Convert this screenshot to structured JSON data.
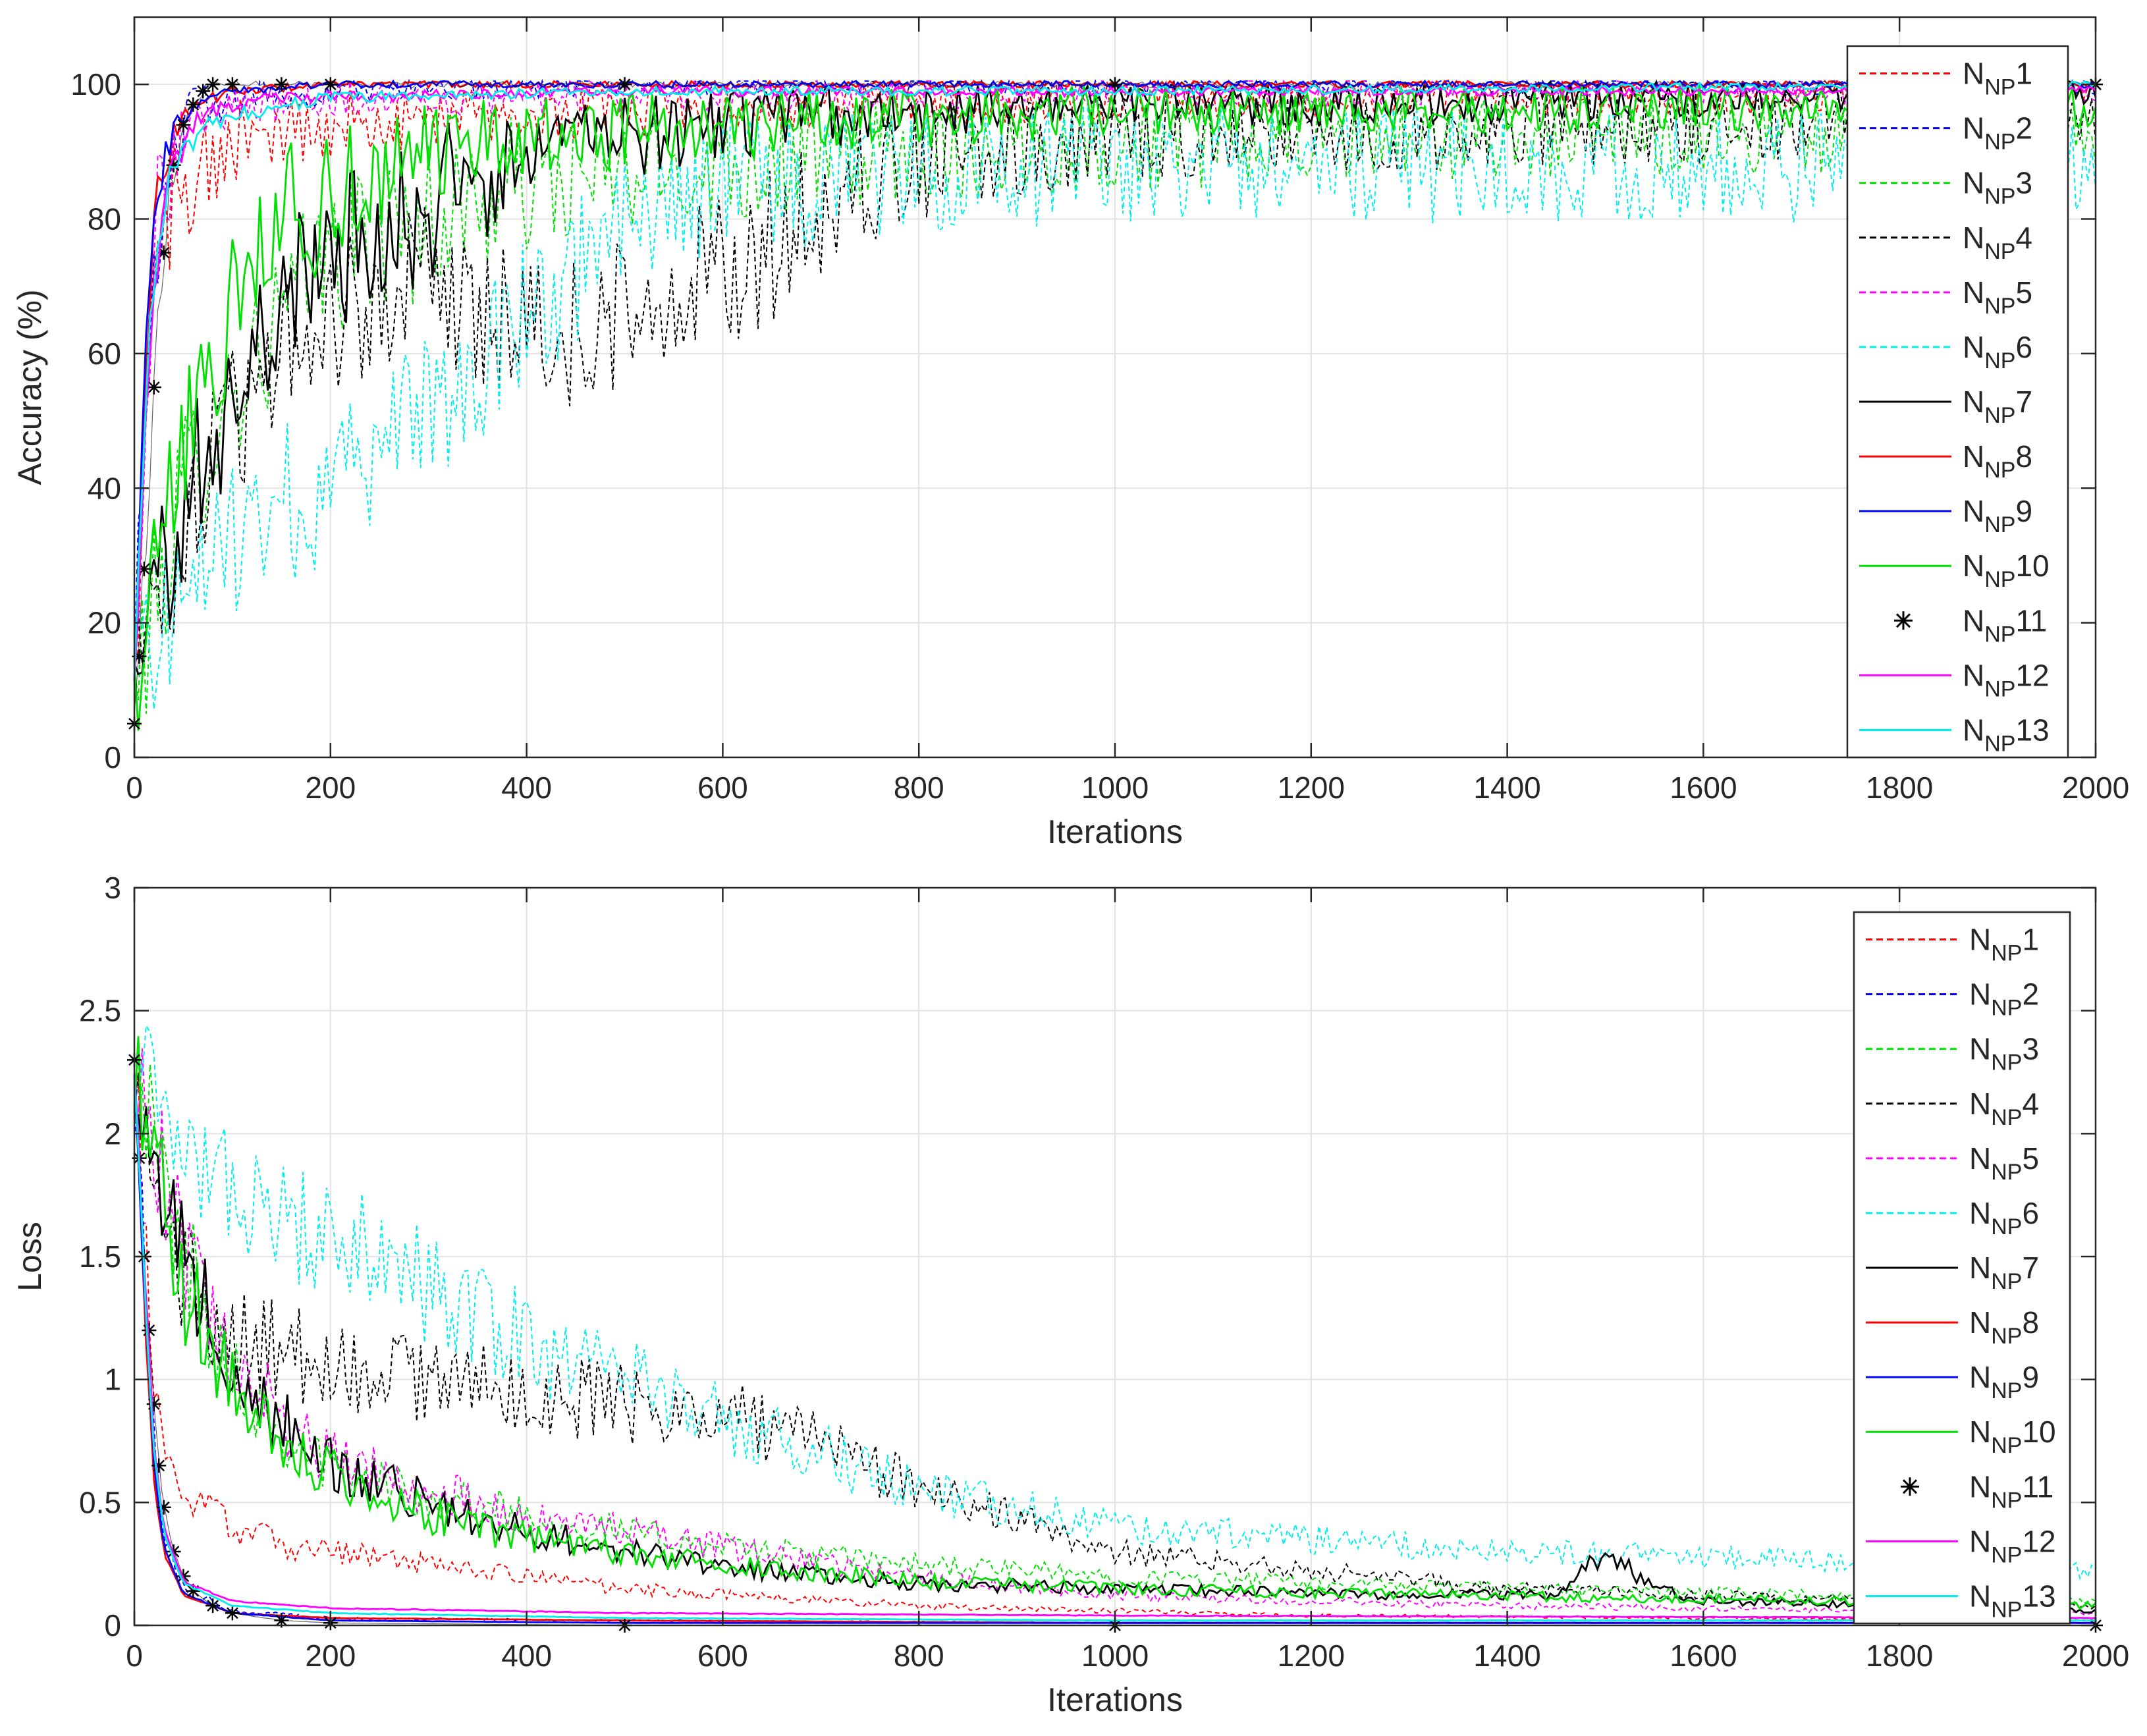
{
  "colors": {
    "red": "#ff0000",
    "blue": "#0000ff",
    "green": "#00e000",
    "black": "#000000",
    "magenta": "#ff00ff",
    "cyan": "#00eeee",
    "grid": "#e3e3e3",
    "axis": "#262626"
  },
  "legend": {
    "prefix": "N",
    "subscript": "NP",
    "placement": "top-right",
    "entries": [
      {
        "id": "1",
        "suffix": "1",
        "color": "red",
        "style": "dashed"
      },
      {
        "id": "2",
        "suffix": "2",
        "color": "blue",
        "style": "dashed"
      },
      {
        "id": "3",
        "suffix": "3",
        "color": "green",
        "style": "dashed"
      },
      {
        "id": "4",
        "suffix": "4",
        "color": "black",
        "style": "dashed"
      },
      {
        "id": "5",
        "suffix": "5",
        "color": "magenta",
        "style": "dashed"
      },
      {
        "id": "6",
        "suffix": "6",
        "color": "cyan",
        "style": "dashed"
      },
      {
        "id": "7",
        "suffix": "7",
        "color": "black",
        "style": "solid"
      },
      {
        "id": "8",
        "suffix": "8",
        "color": "red",
        "style": "solid"
      },
      {
        "id": "9",
        "suffix": "9",
        "color": "blue",
        "style": "solid"
      },
      {
        "id": "10",
        "suffix": "10",
        "color": "green",
        "style": "solid"
      },
      {
        "id": "11",
        "suffix": "11",
        "color": "black",
        "style": "marker"
      },
      {
        "id": "12",
        "suffix": "12",
        "color": "magenta",
        "style": "solid"
      },
      {
        "id": "13",
        "suffix": "13",
        "color": "cyan",
        "style": "solid"
      }
    ]
  },
  "chart_data": [
    {
      "type": "line",
      "panel": "accuracy",
      "title": "",
      "xlabel": "Iterations",
      "ylabel": "Accuracy (%)",
      "xlim": [
        0,
        2000
      ],
      "ylim": [
        0,
        110
      ],
      "xticks": [
        0,
        200,
        400,
        600,
        800,
        1000,
        1200,
        1400,
        1600,
        1800,
        2000
      ],
      "yticks": [
        0,
        20,
        40,
        60,
        80,
        100
      ],
      "xtick_labels": [
        "0",
        "200",
        "400",
        "600",
        "800",
        "1000",
        "1200",
        "1400",
        "1600",
        "1800",
        "2000"
      ],
      "ytick_labels": [
        "0",
        "20",
        "40",
        "60",
        "80",
        "100"
      ],
      "grid": true,
      "legend_position": "top-right",
      "series": [
        {
          "id": "1",
          "x": [
            0,
            10,
            20,
            40,
            60,
            100,
            150,
            200,
            300,
            500,
            800,
            1200,
            1600,
            2000
          ],
          "y": [
            10,
            40,
            70,
            82,
            88,
            91,
            93,
            94,
            95,
            96,
            97,
            98,
            98,
            99
          ]
        },
        {
          "id": "2",
          "x": [
            0,
            10,
            20,
            40,
            60,
            100,
            200,
            500,
            1000,
            2000
          ],
          "y": [
            10,
            55,
            80,
            92,
            96,
            98,
            99,
            100,
            100,
            100
          ]
        },
        {
          "id": "3",
          "x": [
            0,
            50,
            100,
            200,
            400,
            600,
            800,
            1000,
            1400,
            2000
          ],
          "y": [
            10,
            40,
            55,
            75,
            85,
            88,
            90,
            91,
            92,
            93
          ]
        },
        {
          "id": "4",
          "x": [
            0,
            50,
            100,
            200,
            300,
            400,
            500,
            600,
            700,
            800,
            1000,
            1400,
            2000
          ],
          "y": [
            10,
            35,
            50,
            65,
            72,
            62,
            65,
            72,
            80,
            88,
            92,
            93,
            95
          ]
        },
        {
          "id": "5",
          "x": [
            0,
            10,
            20,
            40,
            60,
            100,
            200,
            500,
            1000,
            2000
          ],
          "y": [
            10,
            50,
            75,
            90,
            95,
            97,
            98,
            98,
            99,
            99
          ]
        },
        {
          "id": "6",
          "x": [
            0,
            50,
            100,
            150,
            200,
            250,
            300,
            400,
            500,
            600,
            800,
            1000,
            1400,
            1800,
            2000
          ],
          "y": [
            10,
            25,
            32,
            38,
            40,
            45,
            52,
            65,
            78,
            85,
            87,
            88,
            88,
            88,
            89
          ]
        },
        {
          "id": "7",
          "x": [
            0,
            50,
            100,
            150,
            200,
            300,
            400,
            500,
            600,
            800,
            1000,
            1400,
            1600,
            2000
          ],
          "y": [
            10,
            38,
            55,
            68,
            75,
            82,
            88,
            92,
            94,
            96,
            97,
            97,
            98,
            99
          ]
        },
        {
          "id": "8",
          "x": [
            0,
            10,
            20,
            40,
            60,
            100,
            200,
            500,
            1000,
            2000
          ],
          "y": [
            10,
            55,
            80,
            93,
            97,
            99,
            100,
            100,
            100,
            100
          ]
        },
        {
          "id": "9",
          "x": [
            0,
            10,
            20,
            40,
            60,
            100,
            200,
            500,
            1000,
            2000
          ],
          "y": [
            10,
            55,
            82,
            94,
            97,
            99,
            100,
            100,
            100,
            100
          ]
        },
        {
          "id": "10",
          "x": [
            0,
            50,
            100,
            150,
            200,
            300,
            500,
            800,
            1000,
            2000
          ],
          "y": [
            10,
            45,
            65,
            78,
            85,
            90,
            93,
            95,
            96,
            97
          ]
        },
        {
          "id": "11",
          "x": [
            0,
            5,
            10,
            20,
            30,
            40,
            50,
            60,
            70,
            80,
            100,
            150,
            200,
            500,
            1000,
            2000
          ],
          "y": [
            5,
            15,
            28,
            55,
            75,
            88,
            94,
            97,
            99,
            100,
            100,
            100,
            100,
            100,
            100,
            100
          ]
        },
        {
          "id": "12",
          "x": [
            0,
            10,
            20,
            40,
            60,
            100,
            150,
            200,
            500,
            1000,
            2000
          ],
          "y": [
            10,
            45,
            70,
            88,
            94,
            97,
            98,
            98,
            99,
            99,
            99
          ]
        },
        {
          "id": "13",
          "x": [
            0,
            10,
            20,
            40,
            60,
            100,
            150,
            200,
            500,
            1000,
            2000
          ],
          "y": [
            10,
            50,
            72,
            88,
            92,
            95,
            97,
            98,
            99,
            99,
            100
          ]
        }
      ]
    },
    {
      "type": "line",
      "panel": "loss",
      "title": "",
      "xlabel": "Iterations",
      "ylabel": "Loss",
      "xlim": [
        0,
        2000
      ],
      "ylim": [
        0,
        3
      ],
      "xticks": [
        0,
        200,
        400,
        600,
        800,
        1000,
        1200,
        1400,
        1600,
        1800,
        2000
      ],
      "yticks": [
        0,
        0.5,
        1,
        1.5,
        2,
        2.5,
        3
      ],
      "xtick_labels": [
        "0",
        "200",
        "400",
        "600",
        "800",
        "1000",
        "1200",
        "1400",
        "1600",
        "1800",
        "2000"
      ],
      "ytick_labels": [
        "0",
        "0.5",
        "1",
        "1.5",
        "2",
        "2.5",
        "3"
      ],
      "grid": true,
      "legend_position": "top-right",
      "series": [
        {
          "id": "1",
          "x": [
            0,
            10,
            20,
            30,
            50,
            100,
            150,
            200,
            300,
            400,
            500,
            800,
            1200,
            2000
          ],
          "y": [
            2.3,
            1.6,
            1.0,
            0.7,
            0.55,
            0.4,
            0.33,
            0.3,
            0.25,
            0.2,
            0.15,
            0.08,
            0.04,
            0.02
          ]
        },
        {
          "id": "2",
          "x": [
            0,
            10,
            20,
            30,
            50,
            100,
            200,
            500,
            1000,
            2000
          ],
          "y": [
            2.3,
            1.4,
            0.7,
            0.4,
            0.15,
            0.06,
            0.03,
            0.02,
            0.01,
            0.01
          ]
        },
        {
          "id": "3",
          "x": [
            0,
            25,
            50,
            100,
            150,
            200,
            300,
            400,
            500,
            600,
            800,
            1000,
            1400,
            2000
          ],
          "y": [
            2.3,
            1.9,
            1.5,
            1.05,
            0.8,
            0.65,
            0.52,
            0.45,
            0.38,
            0.32,
            0.25,
            0.2,
            0.15,
            0.1
          ]
        },
        {
          "id": "4",
          "x": [
            0,
            25,
            50,
            100,
            200,
            300,
            400,
            500,
            600,
            700,
            800,
            1000,
            1400,
            2000
          ],
          "y": [
            2.3,
            1.7,
            1.4,
            1.2,
            1.05,
            1.0,
            0.95,
            0.9,
            0.85,
            0.75,
            0.55,
            0.3,
            0.15,
            0.08
          ]
        },
        {
          "id": "5",
          "x": [
            0,
            25,
            50,
            100,
            150,
            200,
            300,
            400,
            500,
            600,
            700,
            800,
            1000,
            1400,
            2000
          ],
          "y": [
            2.3,
            1.9,
            1.5,
            1.1,
            0.85,
            0.7,
            0.55,
            0.45,
            0.38,
            0.32,
            0.25,
            0.2,
            0.12,
            0.08,
            0.05
          ]
        },
        {
          "id": "6",
          "x": [
            0,
            20,
            50,
            100,
            150,
            200,
            250,
            300,
            400,
            500,
            600,
            800,
            1000,
            1200,
            1400,
            1600,
            1800,
            2000
          ],
          "y": [
            2.3,
            2.15,
            1.95,
            1.75,
            1.65,
            1.6,
            1.5,
            1.35,
            1.15,
            1.0,
            0.85,
            0.55,
            0.4,
            0.35,
            0.3,
            0.28,
            0.25,
            0.22
          ]
        },
        {
          "id": "7",
          "x": [
            0,
            25,
            50,
            100,
            150,
            200,
            300,
            400,
            500,
            600,
            700,
            800,
            1000,
            1200,
            1450,
            1500,
            1550,
            1600,
            2000
          ],
          "y": [
            2.3,
            1.8,
            1.5,
            1.05,
            0.82,
            0.65,
            0.5,
            0.38,
            0.3,
            0.24,
            0.2,
            0.17,
            0.15,
            0.13,
            0.12,
            0.3,
            0.15,
            0.1,
            0.06
          ]
        },
        {
          "id": "8",
          "x": [
            0,
            10,
            20,
            30,
            50,
            100,
            200,
            500,
            1000,
            2000
          ],
          "y": [
            2.3,
            1.3,
            0.6,
            0.3,
            0.12,
            0.05,
            0.03,
            0.02,
            0.01,
            0.01
          ]
        },
        {
          "id": "9",
          "x": [
            0,
            10,
            20,
            30,
            50,
            100,
            200,
            500,
            1000,
            2000
          ],
          "y": [
            2.3,
            1.35,
            0.65,
            0.32,
            0.13,
            0.05,
            0.02,
            0.01,
            0.01,
            0.01
          ]
        },
        {
          "id": "10",
          "x": [
            0,
            25,
            50,
            100,
            150,
            200,
            300,
            400,
            600,
            800,
            1000,
            1400,
            2000
          ],
          "y": [
            2.3,
            1.85,
            1.4,
            1.0,
            0.78,
            0.62,
            0.45,
            0.35,
            0.25,
            0.18,
            0.15,
            0.12,
            0.08
          ]
        },
        {
          "id": "11",
          "x": [
            0,
            5,
            10,
            15,
            20,
            25,
            30,
            40,
            50,
            60,
            80,
            100,
            150,
            200,
            500,
            1000,
            2000
          ],
          "y": [
            2.3,
            1.9,
            1.5,
            1.2,
            0.9,
            0.65,
            0.48,
            0.3,
            0.2,
            0.14,
            0.08,
            0.05,
            0.02,
            0.01,
            0.0,
            0.0,
            0.0
          ]
        },
        {
          "id": "12",
          "x": [
            0,
            10,
            20,
            30,
            50,
            100,
            200,
            500,
            1000,
            2000
          ],
          "y": [
            2.3,
            1.45,
            0.75,
            0.4,
            0.18,
            0.1,
            0.07,
            0.05,
            0.04,
            0.03
          ]
        },
        {
          "id": "13",
          "x": [
            0,
            10,
            20,
            30,
            50,
            100,
            200,
            500,
            1000,
            2000
          ],
          "y": [
            2.3,
            1.4,
            0.7,
            0.38,
            0.17,
            0.08,
            0.05,
            0.03,
            0.02,
            0.02
          ]
        }
      ]
    }
  ]
}
